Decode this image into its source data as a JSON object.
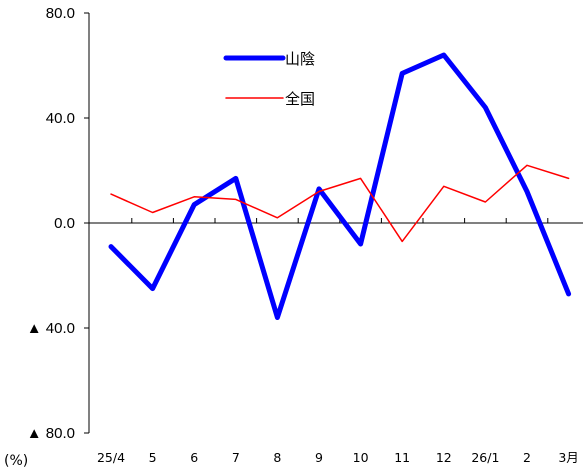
{
  "chart_data": {
    "type": "line",
    "categories": [
      "25/4",
      "5",
      "6",
      "7",
      "8",
      "9",
      "10",
      "11",
      "12",
      "26/1",
      "2",
      "3月"
    ],
    "series": [
      {
        "name": "山陰",
        "color": "#0000ff",
        "values": [
          -9,
          -25,
          7,
          17,
          -36,
          13,
          -8,
          57,
          64,
          44,
          12,
          -27
        ]
      },
      {
        "name": "全国",
        "color": "#ff0000",
        "values": [
          11,
          4,
          10,
          9,
          2,
          12,
          17,
          -7,
          14,
          8,
          22,
          17
        ]
      }
    ],
    "y_tick_labels": [
      {
        "value": 80,
        "label": "80.0"
      },
      {
        "value": 40,
        "label": "40.0"
      },
      {
        "value": 0,
        "label": "0.0"
      },
      {
        "value": -40,
        "label": "▲ 40.0"
      },
      {
        "value": -80,
        "label": "▲ 80.0"
      }
    ],
    "ylim": [
      -80,
      80
    ],
    "y_unit": "(%)",
    "xlabel": "",
    "ylabel": "",
    "title": "",
    "grid": false,
    "legend_position": "top-center"
  }
}
